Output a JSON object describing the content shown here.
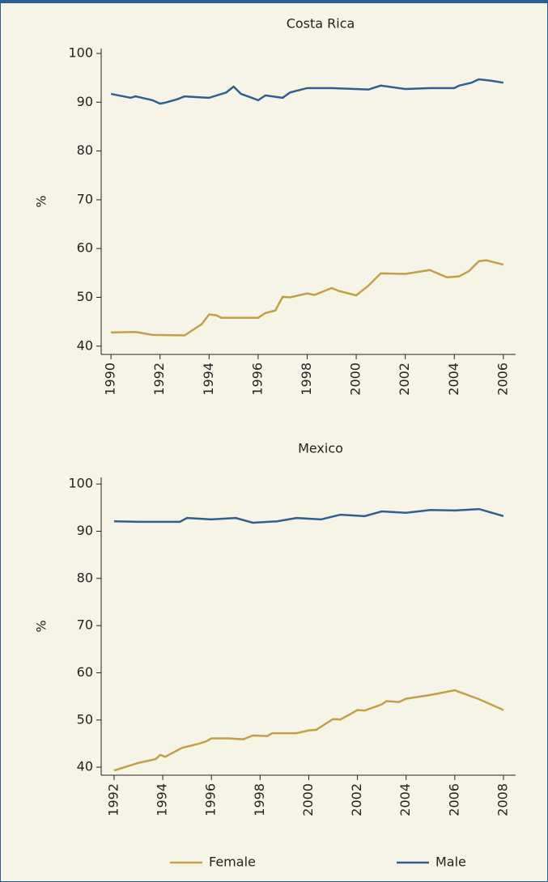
{
  "chart_data": [
    {
      "type": "line",
      "title": "Costa Rica",
      "ylabel": "%",
      "xlim": [
        1989.6,
        2006.5
      ],
      "xticks": [
        1990,
        1992,
        1994,
        1996,
        1998,
        2000,
        2002,
        2004,
        2006
      ],
      "ylim": [
        38.3,
        101
      ],
      "yticks": [
        40,
        50,
        60,
        70,
        80,
        90,
        100
      ],
      "series": [
        {
          "name": "Female",
          "color": "#c2a04a",
          "x": [
            1990,
            1991,
            1991.7,
            1993,
            1993.7,
            1994,
            1994.3,
            1994.5,
            1996,
            1996.3,
            1996.7,
            1997,
            1997.3,
            1998,
            1998.3,
            1998.7,
            1999,
            1999.3,
            2000,
            2000.5,
            2001,
            2002,
            2003,
            2003.7,
            2004.2,
            2004.6,
            2005,
            2005.3,
            2006
          ],
          "values": [
            42.8,
            42.9,
            42.3,
            42.2,
            44.5,
            46.5,
            46.3,
            45.8,
            45.8,
            46.8,
            47.3,
            50.1,
            50.0,
            50.8,
            50.5,
            51.3,
            51.9,
            51.3,
            50.4,
            52.4,
            54.9,
            54.8,
            55.6,
            54.1,
            54.3,
            55.4,
            57.4,
            57.6,
            56.7
          ]
        },
        {
          "name": "Male",
          "color": "#2e5f8e",
          "x": [
            1990,
            1990.5,
            1990.8,
            1991,
            1991.7,
            1992,
            1992.2,
            1992.7,
            1993,
            1994,
            1994.7,
            1995,
            1995.3,
            1995.7,
            1996,
            1996.3,
            1997,
            1997.3,
            1998,
            1999,
            2000.5,
            2001,
            2002,
            2003,
            2004,
            2004.2,
            2004.7,
            2005,
            2005.5,
            2006
          ],
          "values": [
            91.7,
            91.2,
            90.9,
            91.2,
            90.4,
            89.7,
            89.9,
            90.6,
            91.2,
            90.9,
            92.0,
            93.2,
            91.7,
            91.0,
            90.4,
            91.4,
            90.9,
            92.0,
            92.9,
            92.9,
            92.6,
            93.4,
            92.7,
            92.9,
            92.9,
            93.4,
            94.0,
            94.7,
            94.4,
            94.0
          ]
        }
      ]
    },
    {
      "type": "line",
      "title": "Mexico",
      "ylabel": "%",
      "xlim": [
        1991.47,
        2008.5
      ],
      "xticks": [
        1992,
        1994,
        1996,
        1998,
        2000,
        2002,
        2004,
        2006,
        2008
      ],
      "ylim": [
        38.3,
        101.4
      ],
      "yticks": [
        40,
        50,
        60,
        70,
        80,
        90,
        100
      ],
      "series": [
        {
          "name": "Female",
          "color": "#c2a04a",
          "x": [
            1992,
            1993,
            1993.7,
            1993.9,
            1994.1,
            1994.8,
            1995.5,
            1995.8,
            1996,
            1996.7,
            1997.3,
            1997.7,
            1998.3,
            1998.5,
            1999.5,
            2000,
            2000.3,
            2001,
            2001.3,
            2002,
            2002.3,
            2003,
            2003.2,
            2003.7,
            2004,
            2005,
            2006,
            2007,
            2008
          ],
          "values": [
            39.3,
            40.9,
            41.7,
            42.6,
            42.2,
            44.1,
            45.0,
            45.5,
            46.1,
            46.1,
            45.9,
            46.7,
            46.6,
            47.2,
            47.2,
            47.8,
            47.9,
            50.2,
            50.1,
            52.1,
            52.0,
            53.3,
            54.0,
            53.8,
            54.5,
            55.3,
            56.3,
            54.4,
            52.1
          ]
        },
        {
          "name": "Male",
          "color": "#2e5f8e",
          "x": [
            1992,
            1993,
            1994.7,
            1995,
            1996,
            1997,
            1997.7,
            1998.7,
            1999.5,
            2000.5,
            2001.3,
            2002.3,
            2003,
            2004,
            2005,
            2006,
            2007,
            2008
          ],
          "values": [
            92.1,
            92.0,
            92.0,
            92.8,
            92.5,
            92.8,
            91.8,
            92.1,
            92.8,
            92.5,
            93.5,
            93.2,
            94.2,
            93.9,
            94.5,
            94.4,
            94.7,
            93.2
          ]
        }
      ]
    }
  ]
}
